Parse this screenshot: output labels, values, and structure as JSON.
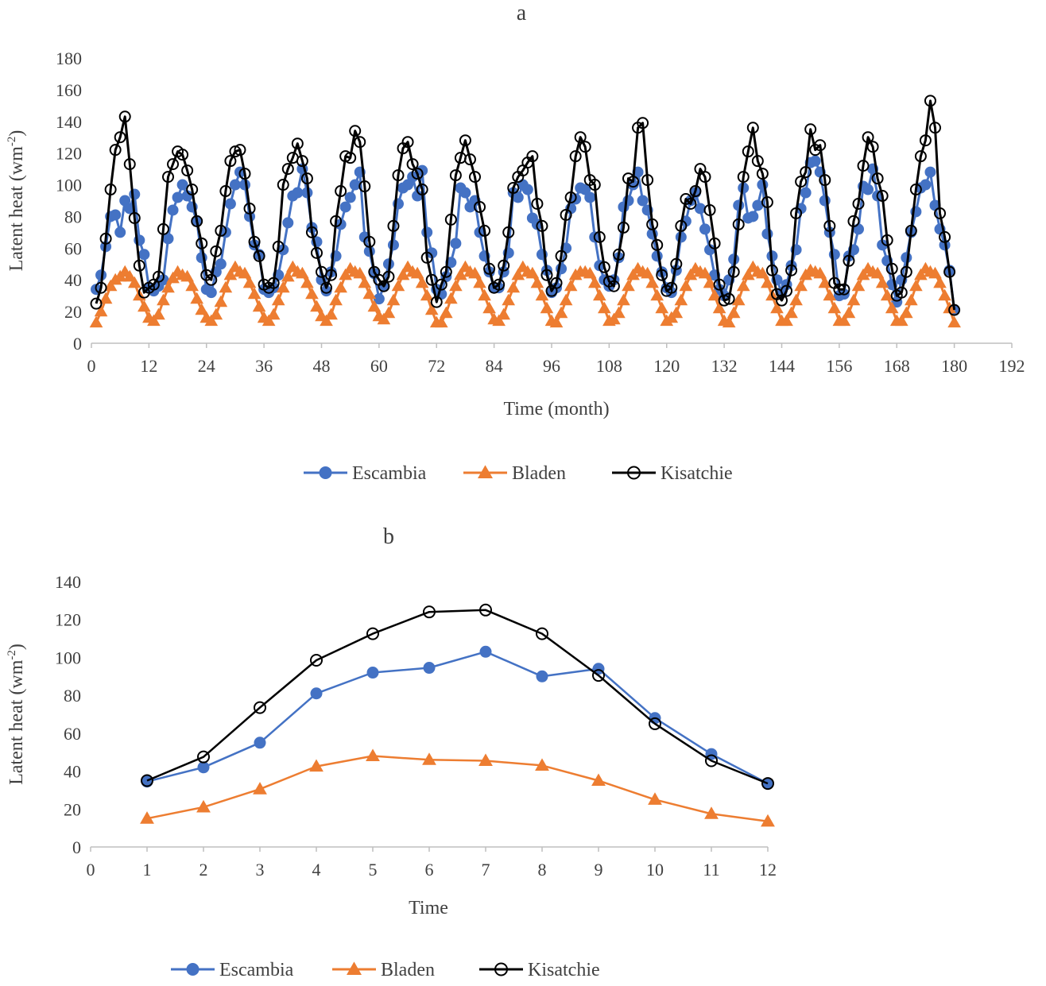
{
  "chart_data": [
    {
      "type": "line",
      "title": "a",
      "xlabel": "Time (month)",
      "ylabel": "Latent heat (wm",
      "ylabel_sup": "-2",
      "ylabel_end": ")",
      "xlim": [
        0,
        192
      ],
      "ylim": [
        0,
        180
      ],
      "x_ticks": [
        0,
        12,
        24,
        36,
        48,
        60,
        72,
        84,
        96,
        108,
        120,
        132,
        144,
        156,
        168,
        180,
        192
      ],
      "y_ticks": [
        0,
        20,
        40,
        60,
        80,
        100,
        120,
        140,
        160,
        180
      ],
      "legend_position": "bottom",
      "series": [
        {
          "name": "Escambia",
          "color": "#4472C4",
          "marker": "circle-filled",
          "values": [
            34,
            43,
            61,
            80,
            81,
            70,
            90,
            85,
            94,
            65,
            56,
            35,
            33,
            36,
            40,
            66,
            84,
            92,
            100,
            93,
            86,
            77,
            54,
            34,
            32,
            45,
            50,
            70,
            88,
            100,
            108,
            100,
            80,
            62,
            56,
            34,
            32,
            35,
            43,
            59,
            76,
            93,
            95,
            110,
            95,
            73,
            64,
            40,
            33,
            45,
            55,
            75,
            86,
            92,
            100,
            108,
            67,
            58,
            44,
            28,
            36,
            50,
            62,
            88,
            98,
            100,
            105,
            93,
            109,
            70,
            57,
            34,
            31,
            42,
            51,
            63,
            98,
            95,
            86,
            90,
            70,
            55,
            45,
            35,
            35,
            45,
            57,
            95,
            92,
            100,
            97,
            79,
            75,
            56,
            46,
            32,
            35,
            47,
            60,
            85,
            91,
            98,
            97,
            92,
            67,
            49,
            40,
            36,
            40,
            54,
            86,
            90,
            100,
            108,
            90,
            84,
            69,
            55,
            45,
            35,
            32,
            46,
            67,
            77,
            90,
            95,
            85,
            72,
            59,
            43,
            34,
            30,
            40,
            53,
            87,
            98,
            79,
            80,
            87,
            100,
            69,
            55,
            40,
            32,
            37,
            49,
            59,
            85,
            95,
            114,
            115,
            108,
            90,
            70,
            56,
            30,
            31,
            55,
            59,
            72,
            99,
            97,
            110,
            93,
            62,
            52,
            37,
            26,
            40,
            54,
            70,
            83,
            98,
            100,
            108,
            87,
            72,
            62,
            46,
            21
          ]
        },
        {
          "name": "Bladen",
          "color": "#ED7D31",
          "marker": "triangle",
          "values": [
            13,
            20,
            28,
            36,
            40,
            42,
            45,
            42,
            38,
            30,
            23,
            16,
            14,
            18,
            27,
            35,
            41,
            45,
            43,
            42,
            36,
            28,
            21,
            16,
            14,
            18,
            26,
            35,
            43,
            48,
            45,
            44,
            38,
            31,
            23,
            16,
            14,
            18,
            27,
            35,
            42,
            48,
            45,
            44,
            38,
            31,
            23,
            17,
            14,
            18,
            27,
            35,
            43,
            47,
            45,
            44,
            38,
            31,
            23,
            17,
            15,
            19,
            27,
            36,
            43,
            48,
            45,
            44,
            38,
            30,
            21,
            13,
            13,
            19,
            28,
            36,
            43,
            48,
            45,
            44,
            38,
            30,
            22,
            15,
            14,
            18,
            27,
            35,
            43,
            48,
            45,
            44,
            38,
            30,
            22,
            14,
            13,
            19,
            27,
            36,
            43,
            45,
            45,
            44,
            38,
            30,
            22,
            14,
            15,
            19,
            27,
            36,
            43,
            47,
            45,
            44,
            38,
            30,
            22,
            14,
            16,
            19,
            27,
            36,
            43,
            47,
            45,
            44,
            38,
            30,
            22,
            14,
            13,
            19,
            27,
            36,
            43,
            48,
            45,
            44,
            38,
            30,
            22,
            14,
            14,
            19,
            27,
            36,
            43,
            46,
            45,
            44,
            38,
            30,
            22,
            14,
            14,
            19,
            27,
            36,
            43,
            47,
            45,
            44,
            38,
            30,
            22,
            14,
            14,
            19,
            27,
            36,
            43,
            47,
            45,
            44,
            38,
            30,
            22,
            13
          ]
        },
        {
          "name": "Kisatchie",
          "color": "#000000",
          "marker": "circle-open",
          "values": [
            25,
            35,
            66,
            97,
            122,
            130,
            143,
            113,
            79,
            49,
            32,
            35,
            37,
            42,
            72,
            105,
            113,
            121,
            119,
            109,
            97,
            77,
            63,
            43,
            40,
            58,
            71,
            96,
            115,
            121,
            122,
            107,
            85,
            64,
            55,
            37,
            35,
            38,
            61,
            100,
            110,
            117,
            126,
            115,
            104,
            70,
            57,
            45,
            35,
            43,
            77,
            96,
            118,
            117,
            134,
            127,
            99,
            64,
            45,
            40,
            36,
            42,
            74,
            106,
            123,
            127,
            113,
            107,
            97,
            54,
            40,
            26,
            37,
            45,
            78,
            106,
            117,
            128,
            116,
            105,
            86,
            71,
            47,
            35,
            37,
            49,
            70,
            98,
            105,
            109,
            114,
            118,
            88,
            74,
            43,
            33,
            38,
            55,
            81,
            92,
            118,
            130,
            124,
            103,
            100,
            67,
            48,
            39,
            36,
            56,
            73,
            104,
            102,
            136,
            139,
            103,
            75,
            62,
            43,
            33,
            35,
            50,
            74,
            91,
            88,
            96,
            110,
            105,
            84,
            63,
            37,
            27,
            28,
            45,
            75,
            105,
            121,
            136,
            115,
            107,
            89,
            46,
            31,
            27,
            33,
            46,
            82,
            102,
            108,
            135,
            122,
            125,
            103,
            74,
            38,
            34,
            34,
            52,
            77,
            88,
            112,
            130,
            124,
            104,
            93,
            65,
            47,
            30,
            32,
            45,
            71,
            97,
            118,
            128,
            153,
            136,
            82,
            67,
            45,
            21
          ]
        }
      ]
    },
    {
      "type": "line",
      "title": "b",
      "xlabel": "Time",
      "ylabel": "Latent heat (wm",
      "ylabel_sup": "-2",
      "ylabel_end": ")",
      "xlim": [
        0,
        12
      ],
      "ylim": [
        0,
        140
      ],
      "x_ticks": [
        0,
        1,
        2,
        3,
        4,
        5,
        6,
        7,
        8,
        9,
        10,
        11,
        12
      ],
      "y_ticks": [
        0,
        20,
        40,
        60,
        80,
        100,
        120,
        140
      ],
      "legend_position": "bottom",
      "series": [
        {
          "name": "Escambia",
          "color": "#4472C4",
          "marker": "circle-filled",
          "x": [
            1,
            2,
            3,
            4,
            5,
            6,
            7,
            8,
            9,
            10,
            11,
            12
          ],
          "values": [
            34.5,
            42,
            55,
            81,
            92,
            94.5,
            103,
            90,
            94,
            68,
            49,
            33.5
          ]
        },
        {
          "name": "Bladen",
          "color": "#ED7D31",
          "marker": "triangle",
          "x": [
            1,
            2,
            3,
            4,
            5,
            6,
            7,
            8,
            9,
            10,
            11,
            12
          ],
          "values": [
            15,
            21,
            30.5,
            42.5,
            48,
            46,
            45.5,
            43,
            35,
            25,
            17.5,
            13.5
          ]
        },
        {
          "name": "Kisatchie",
          "color": "#000000",
          "marker": "circle-open",
          "x": [
            1,
            2,
            3,
            4,
            5,
            6,
            7,
            8,
            9,
            10,
            11,
            12
          ],
          "values": [
            35,
            47.5,
            73.5,
            98.5,
            112.5,
            124,
            125,
            112.5,
            90.5,
            65,
            45.5,
            33.5
          ]
        }
      ]
    }
  ]
}
